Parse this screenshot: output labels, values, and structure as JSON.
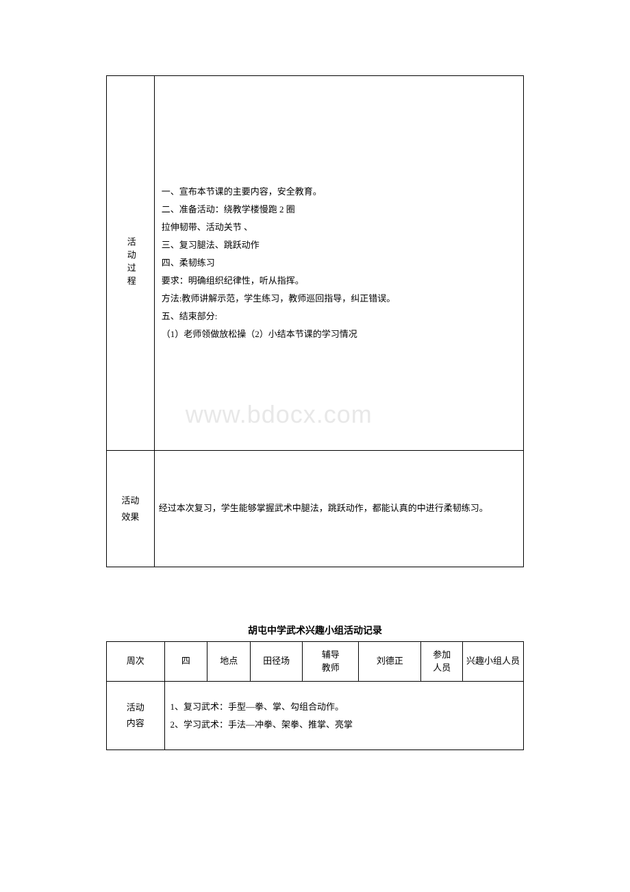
{
  "colors": {
    "border": "#000000",
    "text": "#000000",
    "background": "#ffffff",
    "watermark": "#e8e8e8"
  },
  "fonts": {
    "body_size": 13,
    "title_size": 14,
    "watermark_size": 36
  },
  "table1": {
    "row1": {
      "label": "活动过程",
      "lines": [
        "一、宣布本节课的主要内容，安全教育。",
        "二、准备活动：绕教学楼慢跑 2 圈",
        "拉伸韧带、活动关节 、",
        "三、复习腿法、跳跃动作",
        "四、柔韧练习",
        "要求：明确组织纪律性，听从指挥。",
        "方法:教师讲解示范，学生练习，教师巡回指导，纠正错误。",
        "五、结束部分:",
        "（1）老师领做放松操（2）小结本节课的学习情况"
      ]
    },
    "row2": {
      "label_l1": "活动",
      "label_l2": "效果",
      "content": "经过本次复习，学生能够掌握武术中腿法，跳跃动作，都能认真的中进行柔韧练习。"
    }
  },
  "watermark": "www.bdocx.com",
  "title2": "胡屯中学武术兴趣小组活动记录",
  "table2": {
    "header": {
      "c1": "周次",
      "c2": "四",
      "c3": "地点",
      "c4": "田径场",
      "c5_l1": "辅导",
      "c5_l2": "教师",
      "c6": "刘德正",
      "c7_l1": "参加",
      "c7_l2": "人员",
      "c8": "兴趣小组人员"
    },
    "row2": {
      "label_l1": "活动",
      "label_l2": "内容",
      "line1": "1、复习武术：手型—拳、掌、勾组合动作。",
      "line2": "2、学习武术：手法—冲拳、架拳、推掌、亮掌"
    }
  }
}
